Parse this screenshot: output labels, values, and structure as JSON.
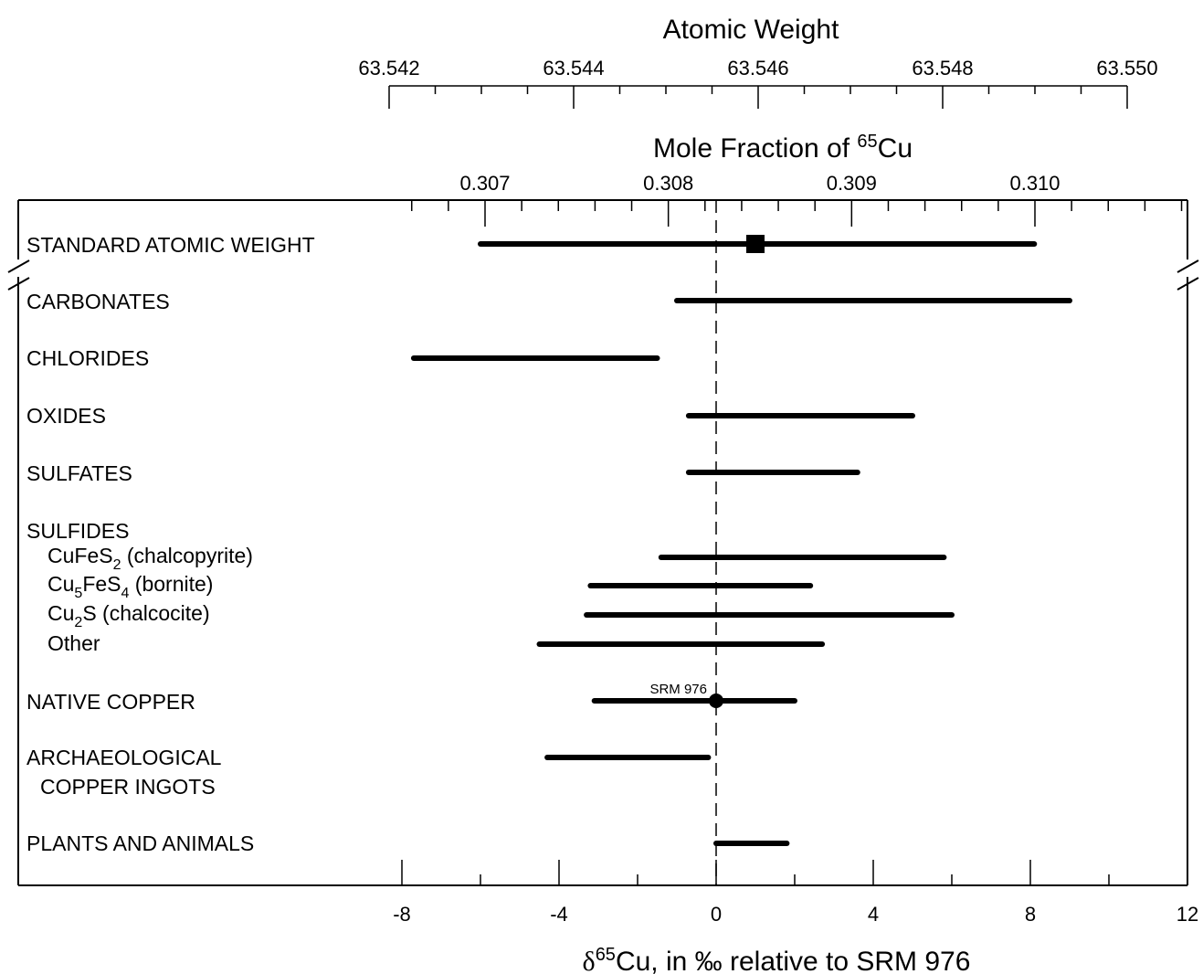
{
  "chart_data": {
    "type": "range",
    "title": "",
    "top_axis_1": {
      "label": "Atomic Weight",
      "ticks": [
        "63.542",
        "63.544",
        "63.546",
        "63.548",
        "63.550"
      ],
      "range": [
        63.542,
        63.55
      ]
    },
    "top_axis_2": {
      "label_prefix": "Mole Fraction of ",
      "label_sup": "65",
      "label_suffix": "Cu",
      "ticks": [
        "0.307",
        "0.308",
        "0.309",
        "0.310"
      ],
      "range": [
        0.307,
        0.31
      ]
    },
    "x_axis": {
      "label_prefix": "δ",
      "label_sup": "65",
      "label_suffix": "Cu, in ‰ relative to SRM 976",
      "ticks": [
        "-8",
        "-4",
        "0",
        "4",
        "8",
        "12"
      ],
      "range": [
        -8,
        12
      ]
    },
    "reference_line": {
      "x": 0,
      "label": "SRM 976"
    },
    "series": [
      {
        "key": "standard-atomic-weight",
        "label": "STANDARD ATOMIC WEIGHT",
        "min": -6.0,
        "max": 8.1,
        "marker": "square",
        "marker_x": 1.0
      },
      {
        "key": "carbonates",
        "label": "CARBONATES",
        "min": -1.0,
        "max": 9.0
      },
      {
        "key": "chlorides",
        "label": "CHLORIDES",
        "min": -7.7,
        "max": -1.5
      },
      {
        "key": "oxides",
        "label": "OXIDES",
        "min": -0.7,
        "max": 5.0
      },
      {
        "key": "sulfates",
        "label": "SULFATES",
        "min": -0.7,
        "max": 3.6
      },
      {
        "key": "sulfides-chalcopyrite",
        "label": "CuFeS₂ (chalcopyrite)",
        "group": "SULFIDES",
        "min": -1.4,
        "max": 5.8
      },
      {
        "key": "sulfides-bornite",
        "label": "Cu₅FeS₄ (bornite)",
        "group": "SULFIDES",
        "min": -3.2,
        "max": 2.4
      },
      {
        "key": "sulfides-chalcocite",
        "label": "Cu₂S (chalcocite)",
        "group": "SULFIDES",
        "min": -3.3,
        "max": 6.0
      },
      {
        "key": "sulfides-other",
        "label": "Other",
        "group": "SULFIDES",
        "min": -4.5,
        "max": 2.7
      },
      {
        "key": "native-copper",
        "label": "NATIVE COPPER",
        "min": -3.1,
        "max": 2.0,
        "marker": "circle",
        "marker_x": 0
      },
      {
        "key": "archaeological-copper-ingots",
        "label": "ARCHAEOLOGICAL COPPER INGOTS",
        "min": -4.3,
        "max": -0.2
      },
      {
        "key": "plants-and-animals",
        "label": "PLANTS AND ANIMALS",
        "min": 0.0,
        "max": 1.8
      }
    ]
  },
  "labels": {
    "standard": "STANDARD ATOMIC WEIGHT",
    "carbonates": "CARBONATES",
    "chlorides": "CHLORIDES",
    "oxides": "OXIDES",
    "sulfates": "SULFATES",
    "sulfides": "SULFIDES",
    "chalcopyrite": {
      "a": "CuFeS",
      "sub1": "2",
      "b": " (chalcopyrite)"
    },
    "bornite": {
      "a": "Cu",
      "sub1": "5",
      "b": "FeS",
      "sub2": "4",
      "c": " (bornite)"
    },
    "chalcocite": {
      "a": "Cu",
      "sub1": "2",
      "b": "S (chalcocite)"
    },
    "other": "Other",
    "native": "NATIVE COPPER",
    "archaeo1": "ARCHAEOLOGICAL",
    "archaeo2": "COPPER INGOTS",
    "plants": "PLANTS AND ANIMALS"
  }
}
